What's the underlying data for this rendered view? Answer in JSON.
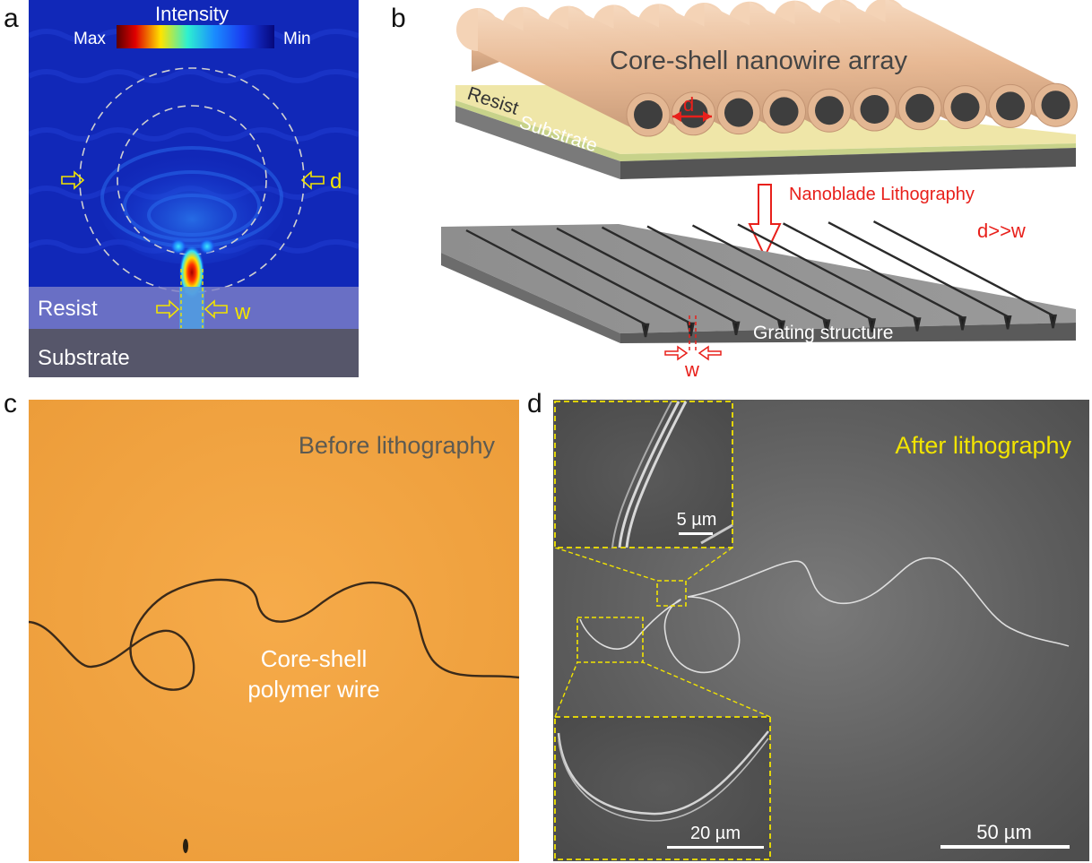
{
  "panel_labels": {
    "a": "a",
    "b": "b",
    "c": "c",
    "d": "d"
  },
  "panel_a": {
    "colorbar_title": "Intensity",
    "colorbar_max": "Max",
    "colorbar_min": "Min",
    "label_d": "d",
    "label_w": "w",
    "layer_resist": "Resist",
    "layer_substrate": "Substrate"
  },
  "panel_b": {
    "array_title": "Core-shell nanowire array",
    "layer_resist": "Resist",
    "layer_substrate": "Substrate",
    "label_d": "d",
    "process_label": "Nanoblade Lithography",
    "relation": "d>>w",
    "grating_label": "Grating structure",
    "label_w": "w"
  },
  "panel_c": {
    "title": "Before lithography",
    "wire_label_line1": "Core-shell",
    "wire_label_line2": "polymer wire"
  },
  "panel_d": {
    "title": "After lithography",
    "inset_top_scale": "5 µm",
    "inset_bottom_scale": "20 µm",
    "main_scale": "50 µm"
  },
  "colors": {
    "highlight_yellow": "#f2e400",
    "annotation_red": "#e8201b",
    "optical_bg": "#f0a23f",
    "sem_bg": "#585858"
  }
}
